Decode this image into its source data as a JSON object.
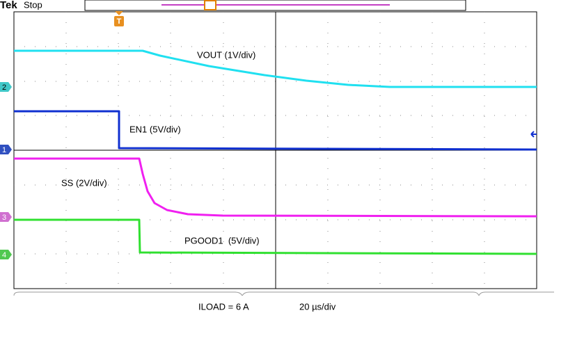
{
  "header": {
    "brand": "Tek",
    "state": "Stop"
  },
  "markers": {
    "trigger": "T"
  },
  "channels": [
    "2",
    "1",
    "3",
    "4"
  ],
  "traces": [
    "VOUT (1V/div)",
    "EN1 (5V/div)",
    "SS (2V/div)",
    "PGOOD1  (5V/div)"
  ],
  "footer": {
    "load": "ILOAD = 6 A",
    "timebase": "20 µs/div"
  }
}
